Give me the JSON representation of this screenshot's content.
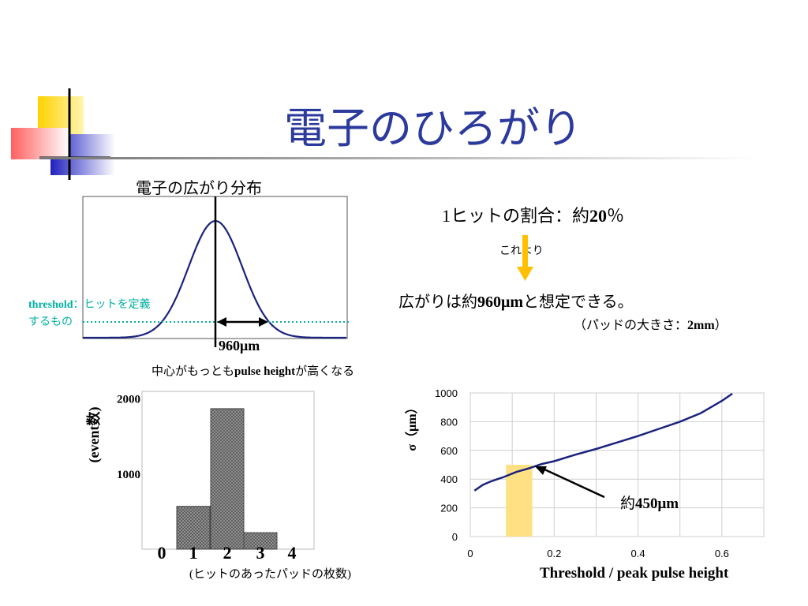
{
  "slide": {
    "title": "電子のひろがり"
  },
  "distribution_panel": {
    "title": "電子の広がり分布",
    "width_label": "960μm",
    "caption_prefix": "中心がもっとも",
    "caption_bold": "pulse height",
    "caption_suffix": "が高くなる",
    "threshold_word": "threshold",
    "threshold_def_1": "：ヒットを定義",
    "threshold_def_2": "するもの",
    "colors": {
      "curve": "#1a237e",
      "threshold": "#00b0a0"
    }
  },
  "notes": {
    "ratio_prefix": "1ヒットの割合：約",
    "ratio_value": "20",
    "ratio_unit": "％",
    "arrow_label": "これより",
    "conclusion_prefix": "広がりは約",
    "conclusion_value": "960μm",
    "conclusion_suffix": "と想定できる。",
    "pad_size_prefix": "（パッドの大きさ：",
    "pad_size_value": "2mm",
    "pad_size_suffix": "）",
    "arrow_color": "#ffc000"
  },
  "chart_data": [
    {
      "type": "bar",
      "title": "",
      "xlabel": "(ヒットのあったパッドの枚数)",
      "ylabel": "(event数)",
      "categories": [
        "0",
        "1",
        "2",
        "3",
        "4"
      ],
      "values": [
        0,
        570,
        1870,
        220,
        0
      ],
      "ytick_labels": [
        "1000",
        "2000"
      ],
      "ylim": [
        0,
        2100
      ],
      "grid": false,
      "colors": {
        "bar": "#9a9a9a"
      }
    },
    {
      "type": "line",
      "title": "",
      "xlabel": "Threshold / peak pulse height",
      "ylabel": "σ（μm）",
      "xlim": [
        0,
        0.7
      ],
      "ylim": [
        0,
        1000
      ],
      "xtick_labels": [
        "0",
        "0.2",
        "0.4",
        "0.6"
      ],
      "ytick_labels": [
        "0",
        "200",
        "400",
        "600",
        "800",
        "1000"
      ],
      "grid": true,
      "series": [
        {
          "x": [
            0.01,
            0.03,
            0.05,
            0.08,
            0.11,
            0.14,
            0.17,
            0.2,
            0.25,
            0.3,
            0.35,
            0.4,
            0.45,
            0.5,
            0.55,
            0.6,
            0.625
          ],
          "values": [
            320,
            360,
            385,
            415,
            450,
            475,
            505,
            525,
            570,
            610,
            655,
            700,
            750,
            800,
            860,
            945,
            995
          ]
        }
      ],
      "highlight": {
        "x_range": [
          0.085,
          0.148
        ],
        "y_top": 500,
        "color": "#ffe082"
      },
      "annotation": {
        "prefix": "約",
        "value": "450μm",
        "x": 0.15,
        "y": 485
      },
      "colors": {
        "line": "#1a237e"
      }
    }
  ]
}
